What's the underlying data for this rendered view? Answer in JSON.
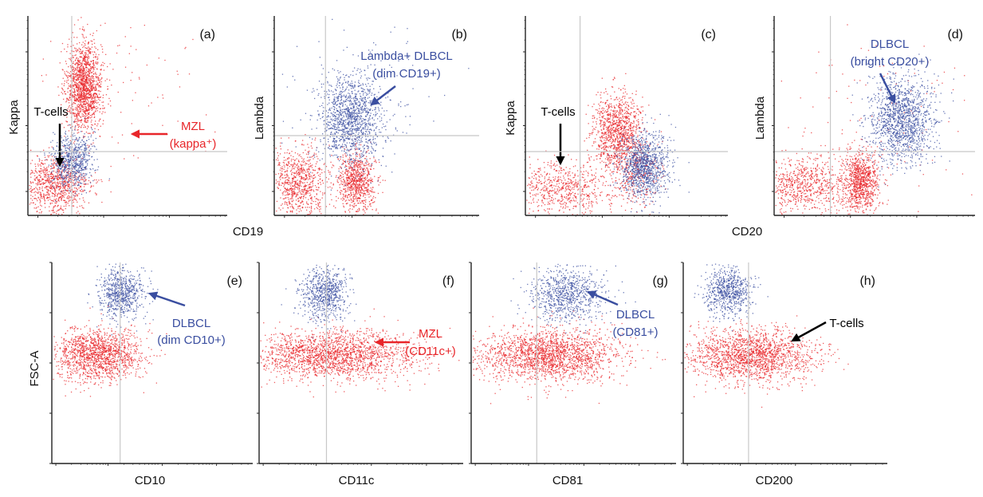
{
  "figure": {
    "colors": {
      "red": "#e8262a",
      "blue": "#3a4ea0",
      "grid": "#c8c8c8",
      "axis": "#222222",
      "arrow_black": "#000000"
    },
    "shared_xlabels": {
      "top_left": "CD19",
      "top_right": "CD20"
    },
    "shared_ylabel_bottom": "FSC-A"
  },
  "chart_data": [
    {
      "type": "scatter",
      "panel": "(a)",
      "xlabel": "",
      "ylabel": "Kappa",
      "series": [
        {
          "color": "red",
          "clusters": [
            {
              "cx": 0.28,
              "cy": 0.65,
              "sx": 0.045,
              "sy": 0.11,
              "n": 1500
            },
            {
              "cx": 0.13,
              "cy": 0.15,
              "sx": 0.09,
              "sy": 0.07,
              "n": 900
            },
            {
              "cx": 0.45,
              "cy": 0.7,
              "sx": 0.25,
              "sy": 0.22,
              "n": 100
            }
          ]
        },
        {
          "color": "blue",
          "clusters": [
            {
              "cx": 0.22,
              "cy": 0.28,
              "sx": 0.05,
              "sy": 0.07,
              "n": 700
            }
          ]
        }
      ],
      "gridlines": {
        "x": 0.22,
        "y": 0.32
      },
      "annotations": [
        {
          "text": [
            "T-cells"
          ],
          "color": "black"
        },
        {
          "text": [
            "MZL",
            "(kappa⁺)"
          ],
          "color": "red"
        }
      ]
    },
    {
      "type": "scatter",
      "panel": "(b)",
      "xlabel": "",
      "ylabel": "Lambda",
      "series": [
        {
          "color": "red",
          "clusters": [
            {
              "cx": 0.12,
              "cy": 0.17,
              "sx": 0.07,
              "sy": 0.08,
              "n": 800
            },
            {
              "cx": 0.4,
              "cy": 0.17,
              "sx": 0.045,
              "sy": 0.075,
              "n": 800
            }
          ]
        },
        {
          "color": "blue",
          "clusters": [
            {
              "cx": 0.37,
              "cy": 0.48,
              "sx": 0.075,
              "sy": 0.11,
              "n": 1300
            },
            {
              "cx": 0.42,
              "cy": 0.62,
              "sx": 0.22,
              "sy": 0.18,
              "n": 120
            }
          ]
        }
      ],
      "gridlines": {
        "x": 0.25,
        "y": 0.4
      },
      "annotations": [
        {
          "text": [
            "Lambda+ DLBCL",
            "(dim CD19+)"
          ],
          "color": "blue"
        }
      ]
    },
    {
      "type": "scatter",
      "panel": "(c)",
      "xlabel": "",
      "ylabel": "Kappa",
      "series": [
        {
          "color": "red",
          "clusters": [
            {
              "cx": 0.45,
              "cy": 0.42,
              "sx": 0.06,
              "sy": 0.09,
              "n": 1100
            },
            {
              "cx": 0.18,
              "cy": 0.13,
              "sx": 0.13,
              "sy": 0.07,
              "n": 700
            },
            {
              "cx": 0.54,
              "cy": 0.22,
              "sx": 0.06,
              "sy": 0.08,
              "n": 300
            }
          ]
        },
        {
          "color": "blue",
          "clusters": [
            {
              "cx": 0.58,
              "cy": 0.25,
              "sx": 0.06,
              "sy": 0.085,
              "n": 1100
            }
          ]
        }
      ],
      "gridlines": {
        "x": 0.27,
        "y": 0.32
      },
      "annotations": [
        {
          "text": [
            "T-cells"
          ],
          "color": "black"
        }
      ]
    },
    {
      "type": "scatter",
      "panel": "(d)",
      "xlabel": "",
      "ylabel": "Lambda",
      "series": [
        {
          "color": "red",
          "clusters": [
            {
              "cx": 0.43,
              "cy": 0.17,
              "sx": 0.045,
              "sy": 0.075,
              "n": 900
            },
            {
              "cx": 0.15,
              "cy": 0.15,
              "sx": 0.12,
              "sy": 0.075,
              "n": 800
            },
            {
              "cx": 0.5,
              "cy": 0.45,
              "sx": 0.25,
              "sy": 0.25,
              "n": 120
            }
          ]
        },
        {
          "color": "blue",
          "clusters": [
            {
              "cx": 0.63,
              "cy": 0.48,
              "sx": 0.08,
              "sy": 0.105,
              "n": 1400
            }
          ]
        }
      ],
      "gridlines": {
        "x": 0.28,
        "y": 0.32
      },
      "annotations": [
        {
          "text": [
            "DLBCL",
            "(bright CD20+)"
          ],
          "color": "blue"
        }
      ]
    },
    {
      "type": "scatter",
      "panel": "(e)",
      "xlabel": "CD10",
      "ylabel": "",
      "series": [
        {
          "color": "red",
          "clusters": [
            {
              "cx": 0.22,
              "cy": 0.54,
              "sx": 0.11,
              "sy": 0.065,
              "n": 1500
            }
          ]
        },
        {
          "color": "blue",
          "clusters": [
            {
              "cx": 0.34,
              "cy": 0.85,
              "sx": 0.055,
              "sy": 0.065,
              "n": 700
            }
          ]
        }
      ],
      "gridlines": {
        "x": 0.34,
        "y": null
      },
      "annotations": [
        {
          "text": [
            "DLBCL",
            "(dim CD10+)"
          ],
          "color": "blue"
        }
      ]
    },
    {
      "type": "scatter",
      "panel": "(f)",
      "xlabel": "CD11c",
      "ylabel": "",
      "series": [
        {
          "color": "red",
          "clusters": [
            {
              "cx": 0.36,
              "cy": 0.54,
              "sx": 0.2,
              "sy": 0.06,
              "n": 2000
            }
          ]
        },
        {
          "color": "blue",
          "clusters": [
            {
              "cx": 0.32,
              "cy": 0.85,
              "sx": 0.06,
              "sy": 0.07,
              "n": 700
            }
          ]
        }
      ],
      "gridlines": {
        "x": 0.33,
        "y": null
      },
      "annotations": [
        {
          "text": [
            "MZL",
            "(CD11c+)"
          ],
          "color": "red"
        }
      ]
    },
    {
      "type": "scatter",
      "panel": "(g)",
      "xlabel": "CD81",
      "ylabel": "",
      "series": [
        {
          "color": "red",
          "clusters": [
            {
              "cx": 0.38,
              "cy": 0.54,
              "sx": 0.17,
              "sy": 0.065,
              "n": 2000
            }
          ]
        },
        {
          "color": "blue",
          "clusters": [
            {
              "cx": 0.47,
              "cy": 0.84,
              "sx": 0.09,
              "sy": 0.065,
              "n": 800
            }
          ]
        }
      ],
      "gridlines": {
        "x": 0.32,
        "y": null
      },
      "annotations": [
        {
          "text": [
            "DLBCL",
            "(CD81+)"
          ],
          "color": "blue"
        }
      ]
    },
    {
      "type": "scatter",
      "panel": "(h)",
      "xlabel": "CD200",
      "ylabel": "",
      "series": [
        {
          "color": "red",
          "clusters": [
            {
              "cx": 0.33,
              "cy": 0.54,
              "sx": 0.15,
              "sy": 0.065,
              "n": 1800
            }
          ]
        },
        {
          "color": "blue",
          "clusters": [
            {
              "cx": 0.22,
              "cy": 0.86,
              "sx": 0.055,
              "sy": 0.06,
              "n": 700
            }
          ]
        }
      ],
      "gridlines": {
        "x": 0.32,
        "y": null
      },
      "annotations": [
        {
          "text": [
            "T-cells"
          ],
          "color": "black"
        }
      ]
    }
  ]
}
